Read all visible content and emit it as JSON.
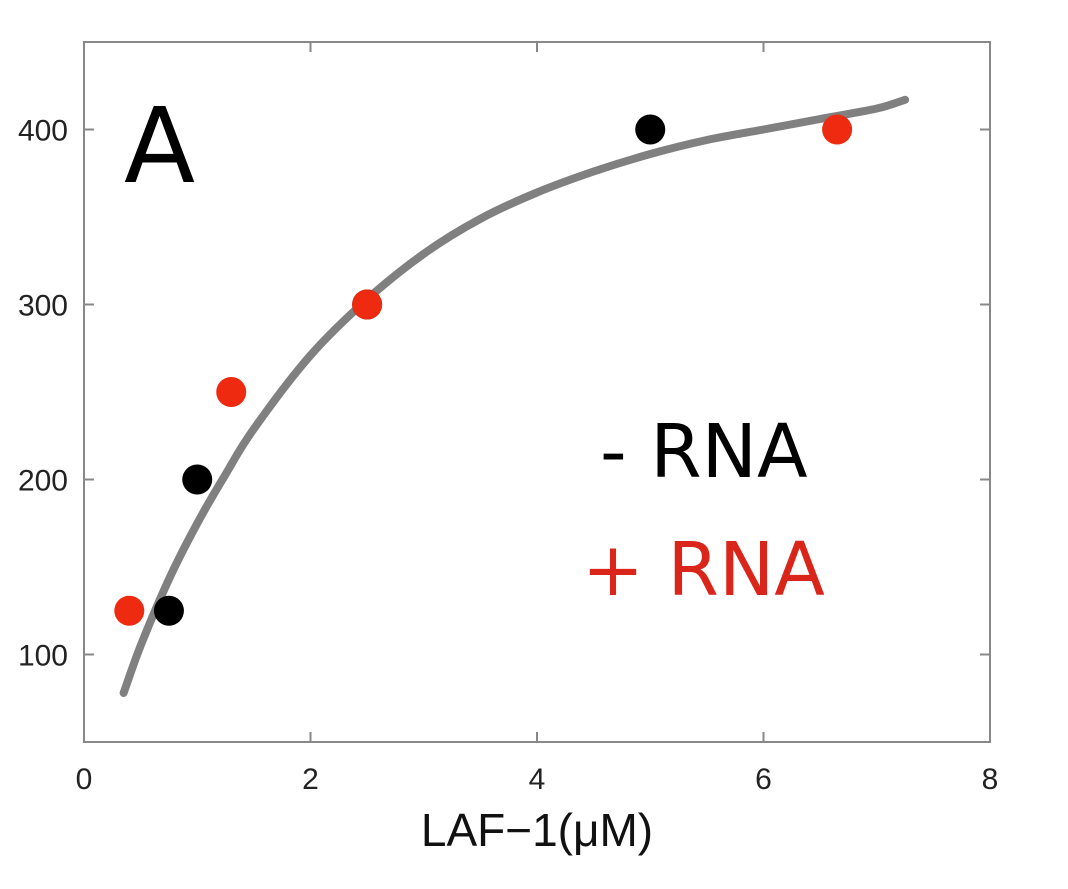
{
  "chart_data": {
    "type": "scatter",
    "panel_label": "A",
    "title": "",
    "xlabel": "LAF−1(μM)",
    "ylabel": "",
    "xlim": [
      0,
      8
    ],
    "ylim": [
      50,
      450
    ],
    "x_ticks": [
      0,
      2,
      4,
      6,
      8
    ],
    "y_ticks": [
      100,
      200,
      300,
      400
    ],
    "grid": false,
    "legend_position": "center-right",
    "series": [
      {
        "name": "- RNA",
        "color": "#000000",
        "points": [
          {
            "x": 0.75,
            "y": 125
          },
          {
            "x": 1.0,
            "y": 200
          },
          {
            "x": 2.5,
            "y": 300
          },
          {
            "x": 5.0,
            "y": 400
          }
        ]
      },
      {
        "name": "+ RNA",
        "color": "#ee2a10",
        "points": [
          {
            "x": 0.4,
            "y": 125
          },
          {
            "x": 1.3,
            "y": 250
          },
          {
            "x": 2.5,
            "y": 300
          },
          {
            "x": 6.65,
            "y": 400
          }
        ]
      }
    ],
    "fit_curve": {
      "color": "#808080",
      "x": [
        0.35,
        0.5,
        0.75,
        1.0,
        1.25,
        1.5,
        2.0,
        2.5,
        3.0,
        3.5,
        4.0,
        4.5,
        5.0,
        5.5,
        6.0,
        6.5,
        7.0,
        7.25
      ],
      "y": [
        78,
        105,
        143,
        175,
        203,
        229,
        271,
        303,
        329,
        349,
        364,
        376,
        386,
        394,
        400,
        406,
        412,
        417
      ]
    }
  }
}
